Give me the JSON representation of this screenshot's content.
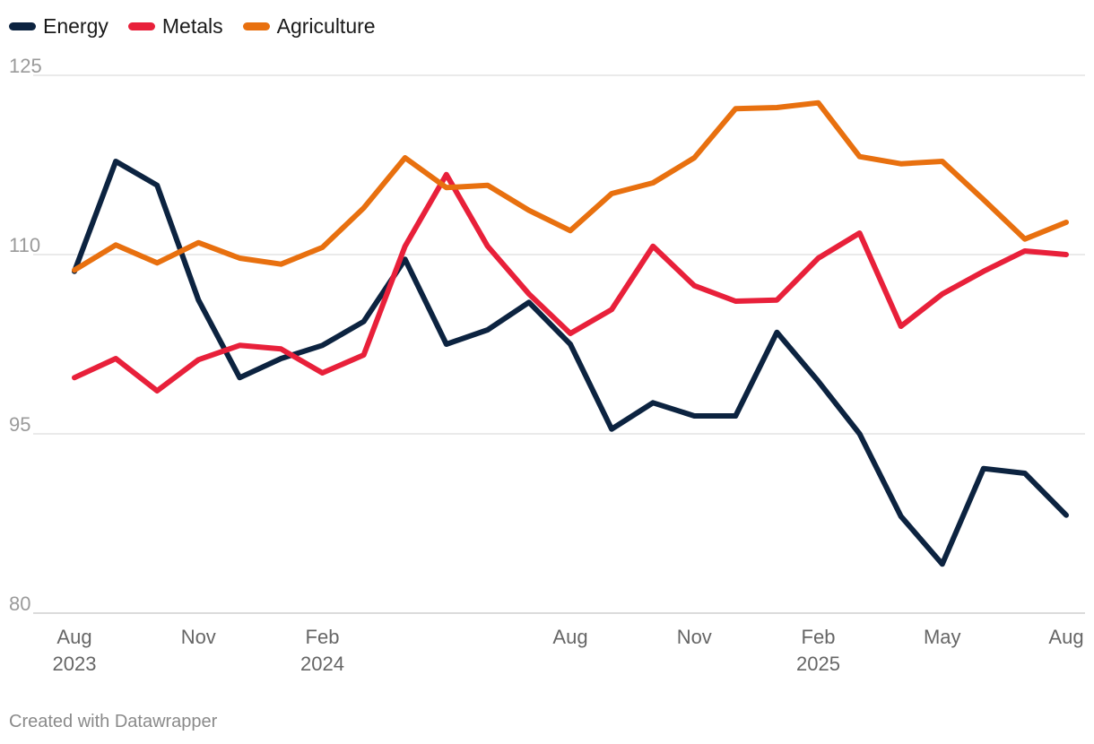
{
  "chart_data": {
    "type": "line",
    "title": "",
    "xlabel": "",
    "ylabel": "",
    "ylim": [
      80,
      125
    ],
    "yticks": [
      80,
      95,
      110,
      125
    ],
    "x": [
      "Aug 2023",
      "Sep 2023",
      "Oct 2023",
      "Nov 2023",
      "Dec 2023",
      "Jan 2024",
      "Feb 2024",
      "Mar 2024",
      "Apr 2024",
      "May 2024",
      "Jun 2024",
      "Jul 2024",
      "Aug 2024",
      "Sep 2024",
      "Oct 2024",
      "Nov 2024",
      "Dec 2024",
      "Jan 2025",
      "Feb 2025",
      "Mar 2025",
      "Apr 2025",
      "May 2025",
      "Jun 2025",
      "Jul 2025",
      "Aug 2025"
    ],
    "xtick_labels": [
      {
        "index": 0,
        "line1": "Aug",
        "line2": "2023"
      },
      {
        "index": 3,
        "line1": "Nov",
        "line2": ""
      },
      {
        "index": 6,
        "line1": "Feb",
        "line2": "2024"
      },
      {
        "index": 12,
        "line1": "Aug",
        "line2": ""
      },
      {
        "index": 15,
        "line1": "Nov",
        "line2": ""
      },
      {
        "index": 18,
        "line1": "Feb",
        "line2": "2025"
      },
      {
        "index": 21,
        "line1": "May",
        "line2": ""
      },
      {
        "index": 24,
        "line1": "Aug",
        "line2": ""
      }
    ],
    "grid": true,
    "legend_position": "top-left",
    "series": [
      {
        "name": "Energy",
        "color": "#0c2340",
        "values": [
          108.6,
          117.8,
          115.8,
          106.2,
          99.7,
          101.3,
          102.4,
          104.4,
          109.6,
          102.5,
          103.7,
          106.0,
          102.5,
          95.4,
          97.6,
          96.5,
          96.5,
          103.5,
          99.4,
          95.0,
          88.1,
          84.1,
          92.1,
          91.7,
          88.2
        ]
      },
      {
        "name": "Metals",
        "color": "#e8203a",
        "values": [
          99.7,
          101.3,
          98.6,
          101.2,
          102.4,
          102.1,
          100.1,
          101.6,
          110.7,
          116.7,
          110.7,
          106.7,
          103.4,
          105.4,
          110.7,
          107.4,
          106.1,
          106.2,
          109.7,
          111.8,
          104.0,
          106.7,
          108.6,
          110.3,
          110.0
        ]
      },
      {
        "name": "Agriculture",
        "color": "#e8700f",
        "values": [
          108.7,
          110.8,
          109.3,
          111.0,
          109.7,
          109.2,
          110.6,
          113.9,
          118.1,
          115.6,
          115.8,
          113.7,
          112.0,
          115.1,
          116.0,
          118.1,
          122.2,
          122.3,
          122.7,
          118.2,
          117.6,
          117.8,
          114.6,
          111.3,
          112.7
        ]
      }
    ]
  },
  "footer": {
    "credit": "Created with Datawrapper"
  }
}
